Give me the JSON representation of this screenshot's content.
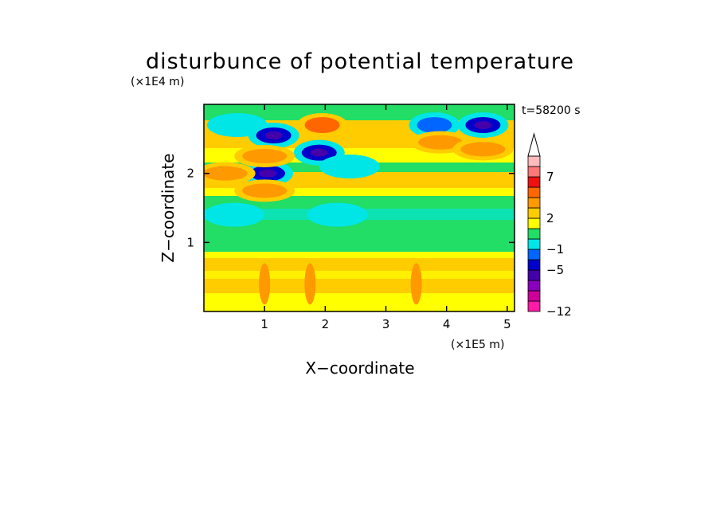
{
  "chart_data": {
    "type": "heatmap",
    "title": "disturbunce of potential temperature",
    "xlabel": "X−coordinate",
    "ylabel": "Z−coordinate",
    "x_scale_label": "(×1E5 m)",
    "y_scale_label": "(×1E4 m)",
    "time_label": "t=58200 s",
    "xlim": [
      0,
      5.12
    ],
    "ylim": [
      0,
      3.0
    ],
    "x_ticks": [
      1,
      2,
      3,
      4,
      5
    ],
    "y_ticks": [
      1,
      2
    ],
    "grid": false,
    "legend_position": "right",
    "colorbar": {
      "colors": [
        "#ff1aa8",
        "#cc0099",
        "#8800bb",
        "#4400aa",
        "#0000cc",
        "#0066ff",
        "#00e6e6",
        "#22dd66",
        "#ffff00",
        "#ffcc00",
        "#ff9900",
        "#ff6600",
        "#ee1111",
        "#ff7777",
        "#ffbbbb"
      ],
      "tick_labels": [
        "−12",
        "−5",
        "−1",
        "2",
        "7"
      ],
      "tick_values": [
        -12,
        -5,
        -1,
        2,
        7
      ],
      "extend_max": true
    },
    "features": [
      {
        "x": 0.55,
        "z": 2.7,
        "value": -3
      },
      {
        "x": 1.15,
        "z": 2.55,
        "value": -6
      },
      {
        "x": 1.05,
        "z": 2.0,
        "value": -6
      },
      {
        "x": 1.9,
        "z": 2.3,
        "value": -6
      },
      {
        "x": 2.4,
        "z": 2.1,
        "value": -3
      },
      {
        "x": 3.8,
        "z": 2.7,
        "value": -5
      },
      {
        "x": 4.6,
        "z": 2.7,
        "value": -6
      },
      {
        "x": 1.95,
        "z": 2.7,
        "value": 4
      },
      {
        "x": 1.0,
        "z": 2.25,
        "value": 3
      },
      {
        "x": 1.0,
        "z": 1.75,
        "value": 3
      },
      {
        "x": 0.35,
        "z": 2.0,
        "value": 3
      },
      {
        "x": 3.9,
        "z": 2.45,
        "value": 3
      },
      {
        "x": 4.6,
        "z": 2.35,
        "value": 3
      },
      {
        "x": 1.0,
        "z": 0.4,
        "value": 2
      },
      {
        "x": 1.75,
        "z": 0.4,
        "value": 2
      },
      {
        "x": 3.5,
        "z": 0.4,
        "value": 2
      },
      {
        "x": 0.5,
        "z": 1.4,
        "value": -1
      },
      {
        "x": 2.2,
        "z": 1.4,
        "value": -1
      }
    ]
  }
}
